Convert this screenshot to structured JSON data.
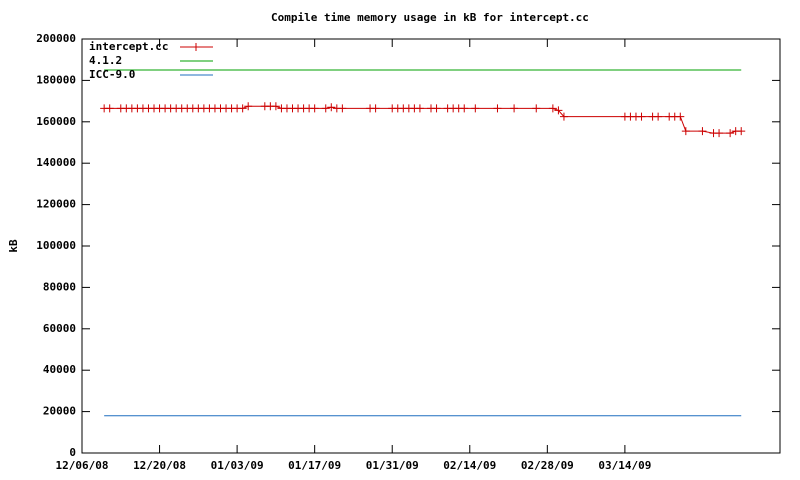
{
  "chart_data": {
    "type": "line",
    "title": "Compile time memory usage in kB for intercept.cc",
    "y_label": "kB",
    "xlim": [
      "12/06/08",
      "04/11/09"
    ],
    "xticks": [
      "12/06/08",
      "12/20/08",
      "01/03/09",
      "01/17/09",
      "01/31/09",
      "02/14/09",
      "02/28/09",
      "03/14/09"
    ],
    "ylim": [
      0,
      200000
    ],
    "yticks": [
      0,
      20000,
      40000,
      60000,
      80000,
      100000,
      120000,
      140000,
      160000,
      180000,
      200000
    ],
    "legend": "top-left",
    "series": [
      {
        "name": "intercept.cc",
        "color": "#cc0000",
        "markers": true,
        "x": [
          "12/10/08",
          "12/11/08",
          "12/13/08",
          "12/14/08",
          "12/15/08",
          "12/16/08",
          "12/17/08",
          "12/18/08",
          "12/19/08",
          "12/20/08",
          "12/21/08",
          "12/22/08",
          "12/23/08",
          "12/24/08",
          "12/25/08",
          "12/26/08",
          "12/27/08",
          "12/28/08",
          "12/29/08",
          "12/30/08",
          "12/31/08",
          "01/01/09",
          "01/02/09",
          "01/03/09",
          "01/04/09",
          "01/05/09",
          "01/08/09",
          "01/09/09",
          "01/10/09",
          "01/11/09",
          "01/12/09",
          "01/13/09",
          "01/14/09",
          "01/15/09",
          "01/16/09",
          "01/17/09",
          "01/19/09",
          "01/20/09",
          "01/21/09",
          "01/22/09",
          "01/27/09",
          "01/28/09",
          "01/31/09",
          "02/01/09",
          "02/02/09",
          "02/03/09",
          "02/04/09",
          "02/05/09",
          "02/07/09",
          "02/08/09",
          "02/10/09",
          "02/11/09",
          "02/12/09",
          "02/13/09",
          "02/15/09",
          "02/19/09",
          "02/22/09",
          "02/26/09",
          "03/01/09",
          "03/02/09",
          "03/03/09",
          "03/14/09",
          "03/15/09",
          "03/16/09",
          "03/17/09",
          "03/19/09",
          "03/20/09",
          "03/22/09",
          "03/23/09",
          "03/24/09",
          "03/25/09",
          "03/28/09",
          "03/30/09",
          "03/31/09",
          "04/02/09",
          "04/03/09",
          "04/04/09"
        ],
        "values": [
          166500,
          166500,
          166500,
          166500,
          166500,
          166500,
          166500,
          166500,
          166500,
          166500,
          166500,
          166500,
          166500,
          166500,
          166500,
          166500,
          166500,
          166500,
          166500,
          166500,
          166500,
          166500,
          166500,
          166500,
          166500,
          167500,
          167500,
          167500,
          167500,
          166500,
          166500,
          166500,
          166500,
          166500,
          166500,
          166500,
          166500,
          167000,
          166500,
          166500,
          166500,
          166500,
          166500,
          166500,
          166500,
          166500,
          166500,
          166500,
          166500,
          166500,
          166500,
          166500,
          166500,
          166500,
          166500,
          166500,
          166500,
          166500,
          166500,
          165500,
          162500,
          162500,
          162500,
          162500,
          162500,
          162500,
          162500,
          162500,
          162500,
          162500,
          155500,
          155500,
          154500,
          154500,
          154500,
          155500,
          155500
        ]
      },
      {
        "name": "4.1.2",
        "color": "#00a000",
        "markers": false,
        "x": [
          "12/10/08",
          "04/04/09"
        ],
        "values": [
          185000,
          185000
        ]
      },
      {
        "name": "ICC-9.0",
        "color": "#1f6fbf",
        "markers": false,
        "x": [
          "12/10/08",
          "04/04/09"
        ],
        "values": [
          18000,
          18000
        ]
      }
    ]
  }
}
